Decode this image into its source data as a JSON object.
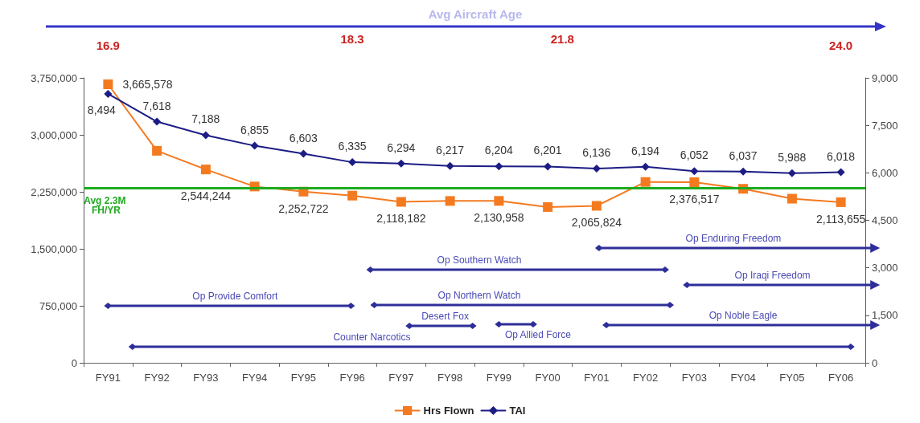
{
  "chart_data": {
    "type": "line",
    "categories": [
      "FY91",
      "FY92",
      "FY93",
      "FY94",
      "FY95",
      "FY96",
      "FY97",
      "FY98",
      "FY99",
      "FY00",
      "FY01",
      "FY02",
      "FY03",
      "FY04",
      "FY05",
      "FY06"
    ],
    "series": [
      {
        "name": "Hrs Flown",
        "color": "#f47a20",
        "marker": "square",
        "values": [
          3665578,
          2790000,
          2544244,
          2320000,
          2252722,
          2200000,
          2118182,
          2130000,
          2130958,
          2050000,
          2065824,
          2380000,
          2376517,
          2290000,
          2160000,
          2113655
        ],
        "value_labels": [
          "3,665,578",
          null,
          "2,544,244",
          null,
          "2,252,722",
          null,
          "2,118,182",
          null,
          "2,130,958",
          null,
          "2,065,824",
          null,
          "2,376,517",
          null,
          null,
          "2,113,655"
        ]
      },
      {
        "name": "TAI",
        "color": "#1c1c85",
        "marker": "diamond",
        "axis": "y2",
        "values": [
          8494,
          7618,
          7188,
          6855,
          6603,
          6335,
          6294,
          6217,
          6204,
          6201,
          6136,
          6194,
          6052,
          6037,
          5988,
          6018
        ],
        "value_labels": [
          "8,494",
          "7,618",
          "7,188",
          "6,855",
          "6,603",
          "6,335",
          "6,294",
          "6,217",
          "6,204",
          "6,201",
          "6,136",
          "6,194",
          "6,052",
          "6,037",
          "5,988",
          "6,018"
        ]
      }
    ],
    "ylim": [
      0,
      3750000
    ],
    "yticks": [
      0,
      {
        "value": 750000,
        "label": "750,000"
      },
      {
        "value": 1500000,
        "label": "1,500,000"
      },
      {
        "value": 2250000,
        "label": "2,250,000"
      },
      {
        "value": 3000000,
        "label": "3,000,000"
      },
      {
        "value": 3750000,
        "label": "3,750,000"
      }
    ],
    "y2lim": [
      0,
      9000
    ],
    "y2ticks": [
      0,
      {
        "value": 1500,
        "label": "1,500"
      },
      {
        "value": 3000,
        "label": "3,000"
      },
      {
        "value": 4500,
        "label": "4,500"
      },
      {
        "value": 6000,
        "label": "6,000"
      },
      {
        "value": 7500,
        "label": "7,500"
      },
      {
        "value": 9000,
        "label": "9,000"
      }
    ],
    "ref_lines": [
      {
        "axis": "y",
        "value": 2300000,
        "label": "Avg 2.3M FH/YR",
        "color": "#1faa1f"
      }
    ],
    "annotations": [
      "Avg Aircraft Age",
      "16.9",
      "18.3",
      "21.8",
      "24.0",
      "Counter Narcotics",
      "Op Provide Comfort",
      "Op Southern Watch",
      "Op Northern Watch",
      "Desert Fox",
      "Op Allied Force",
      "Op Enduring Freedom",
      "Op Iraqi Freedom",
      "Op Noble Eagle"
    ],
    "legend": "bottom",
    "grid": false,
    "line_style": "solid"
  }
}
